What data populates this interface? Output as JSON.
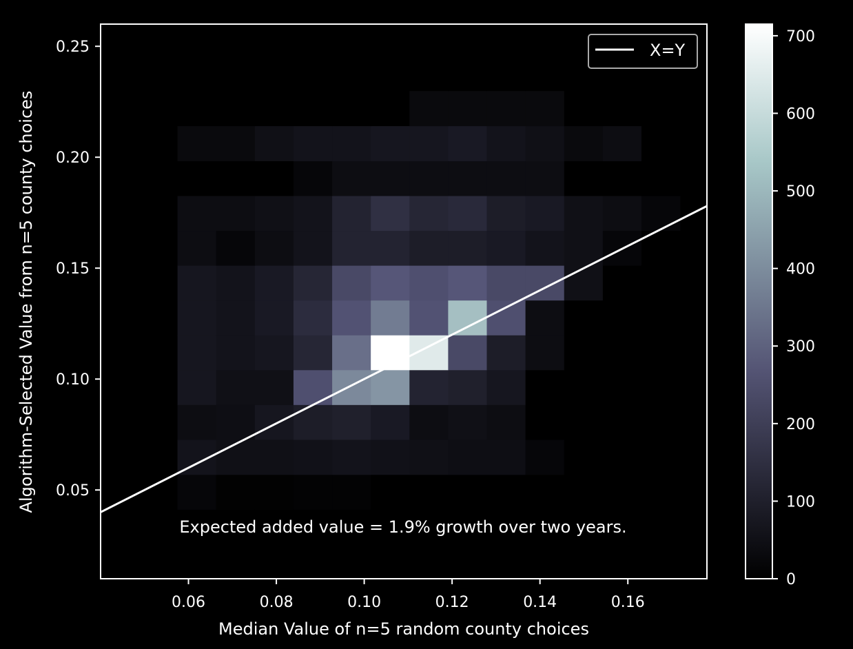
{
  "chart_data": {
    "type": "heatmap",
    "title": "",
    "xlabel": "Median Value of n=5 random county choices",
    "ylabel": "Algorithm-Selected Value from n=5 county choices",
    "xlim": [
      0.04,
      0.178
    ],
    "ylim": [
      0.01,
      0.26
    ],
    "x_ticks": [
      "0.06",
      "0.08",
      "0.10",
      "0.12",
      "0.14",
      "0.16"
    ],
    "y_ticks": [
      "0.05",
      "0.10",
      "0.15",
      "0.20",
      "0.25"
    ],
    "bin_edges_x": [
      0.0575,
      0.0663,
      0.0751,
      0.0839,
      0.0927,
      0.1015,
      0.1103,
      0.1191,
      0.1279,
      0.1367,
      0.1455,
      0.1543,
      0.1631,
      0.1719
    ],
    "bin_edges_y": [
      0.0412,
      0.0569,
      0.0727,
      0.0884,
      0.1041,
      0.1198,
      0.1355,
      0.1512,
      0.1669,
      0.1826,
      0.1983,
      0.2141,
      0.2298
    ],
    "counts": [
      [
        20,
        5,
        5,
        10,
        10,
        0,
        0,
        0,
        0,
        0,
        0,
        0,
        0
      ],
      [
        60,
        50,
        50,
        55,
        60,
        55,
        50,
        45,
        45,
        20,
        0,
        0,
        0
      ],
      [
        40,
        45,
        70,
        90,
        100,
        80,
        40,
        50,
        40,
        0,
        0,
        0,
        0
      ],
      [
        70,
        50,
        50,
        250,
        390,
        420,
        110,
        100,
        70,
        0,
        0,
        0,
        0
      ],
      [
        70,
        60,
        70,
        120,
        330,
        720,
        650,
        230,
        90,
        40,
        0,
        0,
        0
      ],
      [
        70,
        60,
        80,
        140,
        260,
        360,
        260,
        520,
        250,
        40,
        0,
        0,
        0
      ],
      [
        70,
        60,
        80,
        120,
        230,
        270,
        250,
        270,
        230,
        230,
        50,
        0,
        0
      ],
      [
        40,
        20,
        40,
        60,
        110,
        110,
        90,
        90,
        80,
        60,
        50,
        20,
        0
      ],
      [
        40,
        40,
        50,
        60,
        110,
        150,
        120,
        130,
        90,
        80,
        50,
        40,
        20
      ],
      [
        0,
        0,
        0,
        20,
        40,
        40,
        40,
        40,
        40,
        40,
        0,
        0,
        0
      ],
      [
        30,
        30,
        50,
        60,
        60,
        70,
        70,
        80,
        60,
        50,
        30,
        40,
        0
      ],
      [
        0,
        0,
        0,
        0,
        0,
        0,
        30,
        30,
        30,
        30,
        0,
        0,
        0
      ]
    ],
    "colorbar": {
      "range": [
        0,
        715
      ],
      "ticks": [
        "0",
        "100",
        "200",
        "300",
        "400",
        "500",
        "600",
        "700"
      ],
      "colormap": "bone"
    },
    "reference_line": {
      "name": "X=Y",
      "slope": 1,
      "intercept": 0,
      "color": "#ffffff"
    },
    "legend": {
      "position": "top-right",
      "entries": [
        "X=Y"
      ]
    },
    "annotation": "Expected added value = 1.9% growth over two years.",
    "grid": false,
    "colors": {
      "background": "#000000",
      "foreground": "#ffffff"
    }
  }
}
